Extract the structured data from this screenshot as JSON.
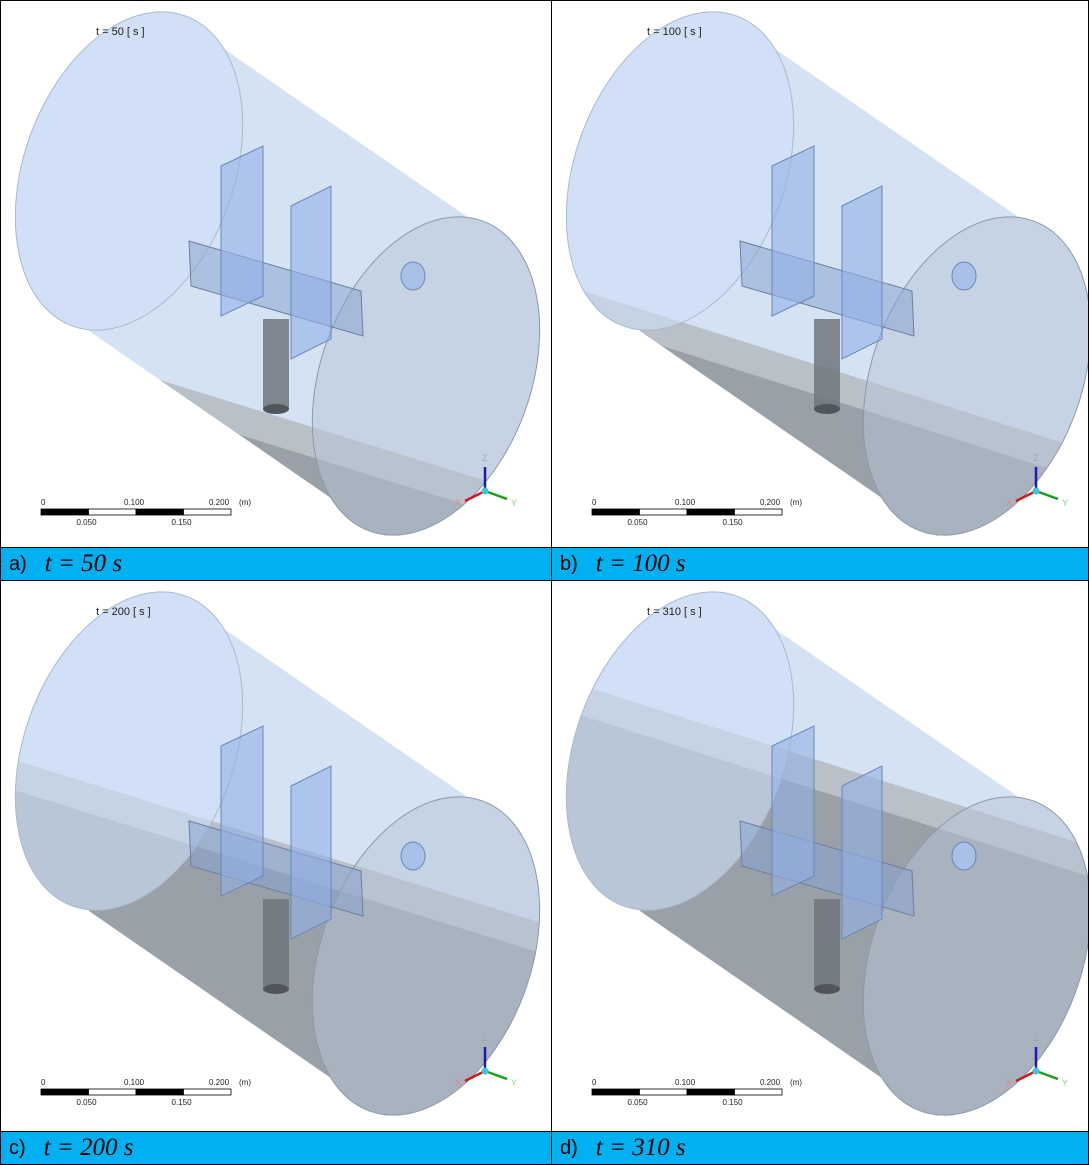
{
  "panels": [
    {
      "time_label": "t = 50 [ s ]",
      "caption": {
        "letter": "a)",
        "equation": "t = 50 s"
      },
      "scale_bar": {
        "labels": [
          "0",
          "0.100",
          "0.200",
          "(m)"
        ],
        "sub_labels": [
          "0.050",
          "0.150"
        ]
      },
      "axes": {
        "z": "Z",
        "x": "X",
        "y": "Y"
      }
    },
    {
      "time_label": "t = 100 [ s ]",
      "caption": {
        "letter": "b)",
        "equation": "t = 100 s"
      },
      "scale_bar": {
        "labels": [
          "0",
          "0.100",
          "0.200",
          "(m)"
        ],
        "sub_labels": [
          "0.050",
          "0.150"
        ]
      },
      "axes": {
        "z": "Z",
        "x": "X",
        "y": "Y"
      }
    },
    {
      "time_label": "t = 200 [ s ]",
      "caption": {
        "letter": "c)",
        "equation": "t = 200 s"
      },
      "scale_bar": {
        "labels": [
          "0",
          "0.100",
          "0.200",
          "(m)"
        ],
        "sub_labels": [
          "0.050",
          "0.150"
        ]
      },
      "axes": {
        "z": "Z",
        "x": "X",
        "y": "Y"
      }
    },
    {
      "time_label": "t = 310 [ s ]",
      "caption": {
        "letter": "d)",
        "equation": "t = 310 s"
      },
      "scale_bar": {
        "labels": [
          "0",
          "0.100",
          "0.200",
          "(m)"
        ],
        "sub_labels": [
          "0.050",
          "0.150"
        ]
      },
      "axes": {
        "z": "Z",
        "x": "X",
        "y": "Y"
      }
    }
  ]
}
